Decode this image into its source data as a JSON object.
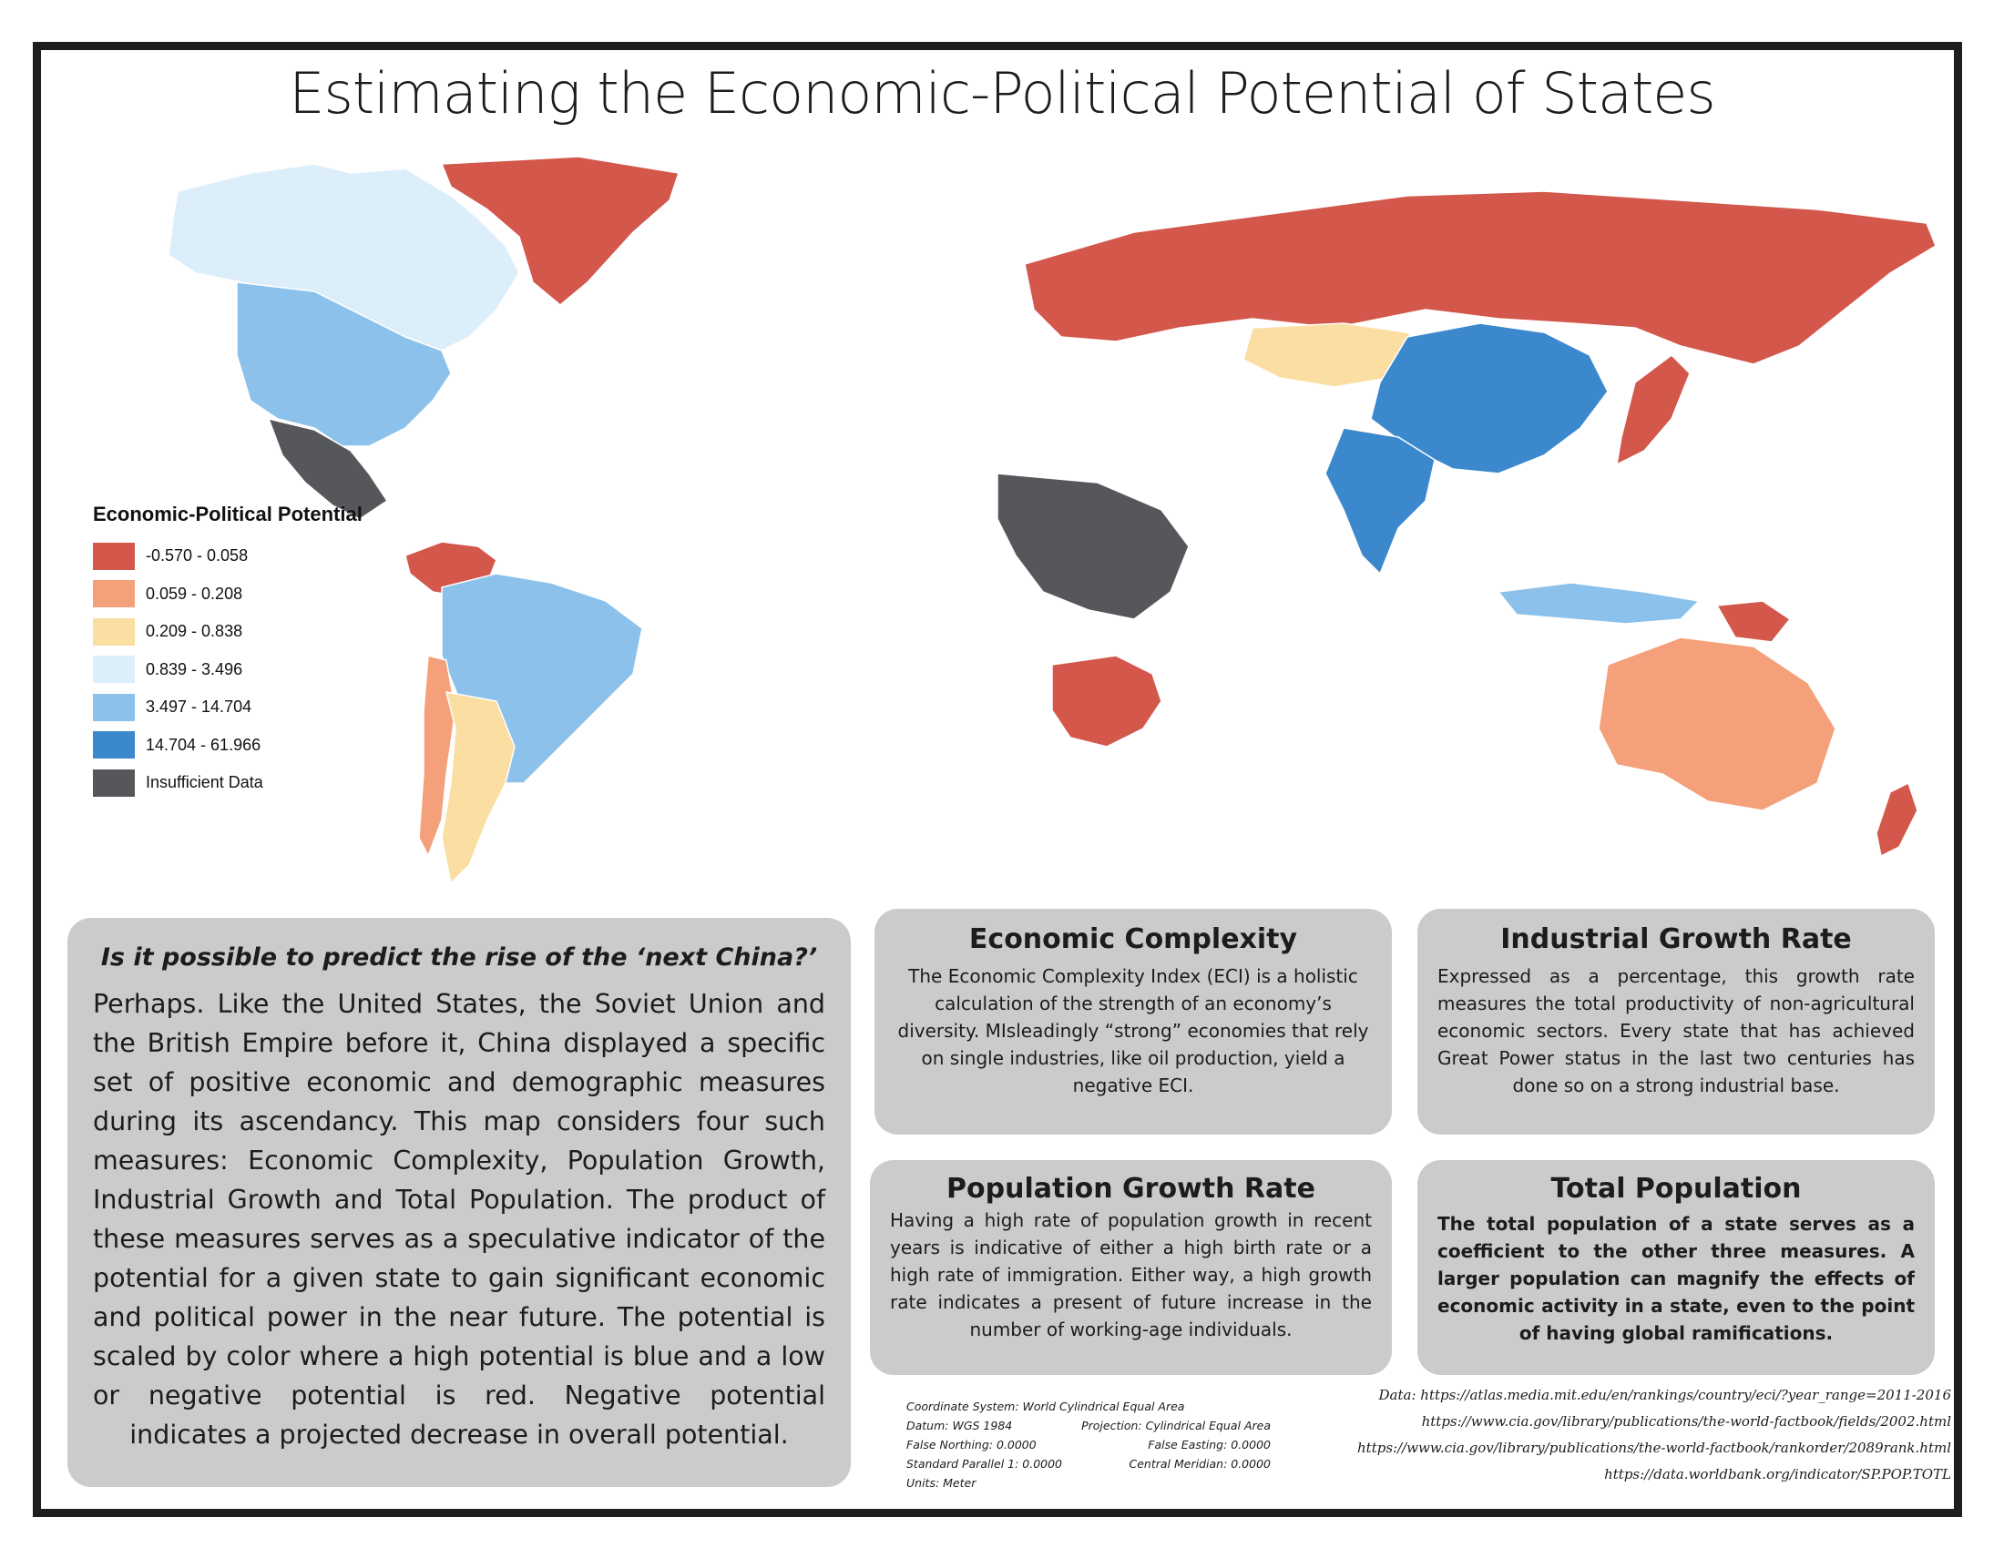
{
  "title": "Estimating the Economic-Political Potential of States",
  "legend": {
    "title": "Economic-Political Potential",
    "classes": [
      {
        "label": "-0.570 - 0.058",
        "color": "#d3574a"
      },
      {
        "label": "0.059 - 0.208",
        "color": "#f4a07a"
      },
      {
        "label": "0.209 - 0.838",
        "color": "#fbdea2"
      },
      {
        "label": "0.839 - 3.496",
        "color": "#ddeefb"
      },
      {
        "label": "3.497 - 14.704",
        "color": "#8bc1ea"
      },
      {
        "label": "14.704 - 61.966",
        "color": "#3b88cc"
      },
      {
        "label": "Insufficient Data",
        "color": "#55575b"
      }
    ]
  },
  "map_regions": [
    {
      "name": "Canada",
      "class": "0.839 - 3.496"
    },
    {
      "name": "United States",
      "class": "3.497 - 14.704"
    },
    {
      "name": "Greenland",
      "class": "-0.570 - 0.058"
    },
    {
      "name": "Mexico",
      "class": "Insufficient Data"
    },
    {
      "name": "Brazil",
      "class": "3.497 - 14.704"
    },
    {
      "name": "Venezuela",
      "class": "-0.570 - 0.058"
    },
    {
      "name": "Argentina",
      "class": "0.209 - 0.838"
    },
    {
      "name": "Chile",
      "class": "0.059 - 0.208"
    },
    {
      "name": "Russia",
      "class": "-0.570 - 0.058"
    },
    {
      "name": "Kazakhstan",
      "class": "0.209 - 0.838"
    },
    {
      "name": "China",
      "class": "14.704 - 61.966"
    },
    {
      "name": "India",
      "class": "14.704 - 61.966"
    },
    {
      "name": "Japan",
      "class": "-0.570 - 0.058"
    },
    {
      "name": "Australia",
      "class": "0.059 - 0.208"
    },
    {
      "name": "Papua New Guinea",
      "class": "-0.570 - 0.058"
    },
    {
      "name": "New Zealand",
      "class": "-0.570 - 0.058"
    },
    {
      "name": "Indonesia",
      "class": "3.497 - 14.704"
    },
    {
      "name": "Central Africa",
      "class": "Insufficient Data"
    },
    {
      "name": "Southern Africa",
      "class": "-0.570 - 0.058"
    }
  ],
  "main_box": {
    "question": "Is it possible to predict the rise of the ‘next China?’",
    "body": "Perhaps. Like the United States, the Soviet Union and the British Empire before it, China displayed a specific set of positive economic and demographic measures during its ascendancy. This map considers four such measures: Economic Complexity, Population Growth, Industrial Growth and Total Population. The product of these measures serves as a speculative indicator of the potential for a given state to gain significant economic and political power in the near future. The potential is scaled by color where a high potential is blue and a low or negative potential is red. Negative potential indicates a projected decrease in overall potential."
  },
  "economic_complexity": {
    "title": "Economic Complexity",
    "body": "The Economic Complexity Index (ECI) is a holistic calculation of the strength of an economy’s diversity. MIsleadingly “strong” economies that rely on single industries, like oil production, yield a negative ECI."
  },
  "industrial_growth": {
    "title": "Industrial Growth Rate",
    "body": "Expressed as a percentage, this growth rate measures the total productivity of non-agricultural economic sectors. Every state that has achieved Great Power status in the last two centuries has done so on a strong industrial base."
  },
  "population_growth": {
    "title": "Population Growth Rate",
    "body": "Having a high rate of population growth in recent years is indicative of either a high birth rate or a high rate of immigration. Either way, a high growth rate indicates a present of future increase in the number of working-age individuals."
  },
  "total_population": {
    "title": "Total Population",
    "body": "The total population of a state serves as a coefficient to the other three measures. A larger population can magnify the effects of economic activity in a state, even to the point of having global ramifications."
  },
  "coordinate_info": {
    "system": "Coordinate System: World Cylindrical Equal Area",
    "datum": "Datum: WGS 1984",
    "projection": "Projection: Cylindrical Equal Area",
    "false_northing": "False Northing: 0.0000",
    "false_easting": "False Easting: 0.0000",
    "standard_parallel": "Standard Parallel 1: 0.0000",
    "central_meridian": "Central Meridian: 0.0000",
    "units": "Units: Meter"
  },
  "sources": [
    "Data: https://atlas.media.mit.edu/en/rankings/country/eci/?year_range=2011-2016",
    "https://www.cia.gov/library/publications/the-world-factbook/fields/2002.html",
    "https://www.cia.gov/library/publications/the-world-factbook/rankorder/2089rank.html",
    "https://data.worldbank.org/indicator/SP.POP.TOTL"
  ]
}
